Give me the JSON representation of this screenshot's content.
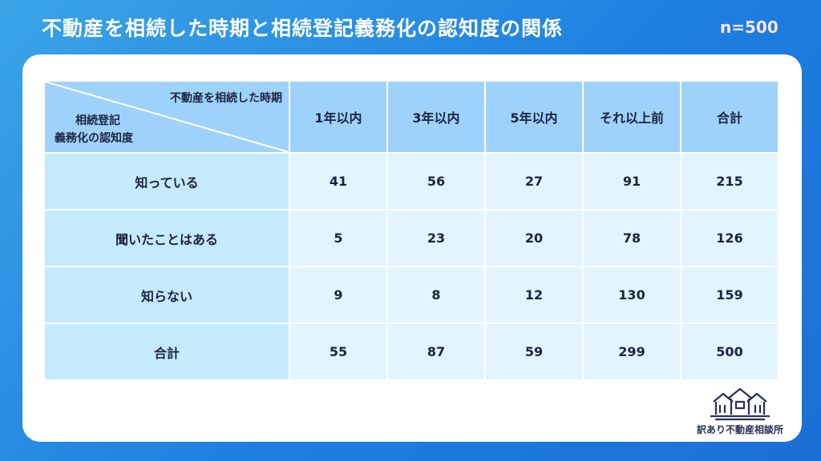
{
  "title": "不動産を相続した時期と相続登記義務化の認知度の関係",
  "sample_size": "n=500",
  "colors": {
    "accent": "#1d7fe0",
    "header": "#9fd2fb",
    "row_header": "#c6eafd",
    "cell": "#e2f5fe",
    "text": "#1b2340"
  },
  "chart_data": {
    "type": "table",
    "corner": {
      "column_axis": "不動産を相続した時期",
      "row_axis_line1": "相続登記",
      "row_axis_line2": "義務化の認知度"
    },
    "columns": [
      "1年以内",
      "3年以内",
      "5年以内",
      "それ以上前",
      "合計"
    ],
    "rows": [
      {
        "label": "知っている",
        "values": [
          "41",
          "56",
          "27",
          "91",
          "215"
        ]
      },
      {
        "label": "聞いたことはある",
        "values": [
          "5",
          "23",
          "20",
          "78",
          "126"
        ]
      },
      {
        "label": "知らない",
        "values": [
          "9",
          "8",
          "12",
          "130",
          "159"
        ]
      },
      {
        "label": "合計",
        "values": [
          "55",
          "87",
          "59",
          "299",
          "500"
        ]
      }
    ]
  },
  "logo": {
    "name": "訳あり不動産相談所",
    "icon": "houses-logo-icon"
  }
}
